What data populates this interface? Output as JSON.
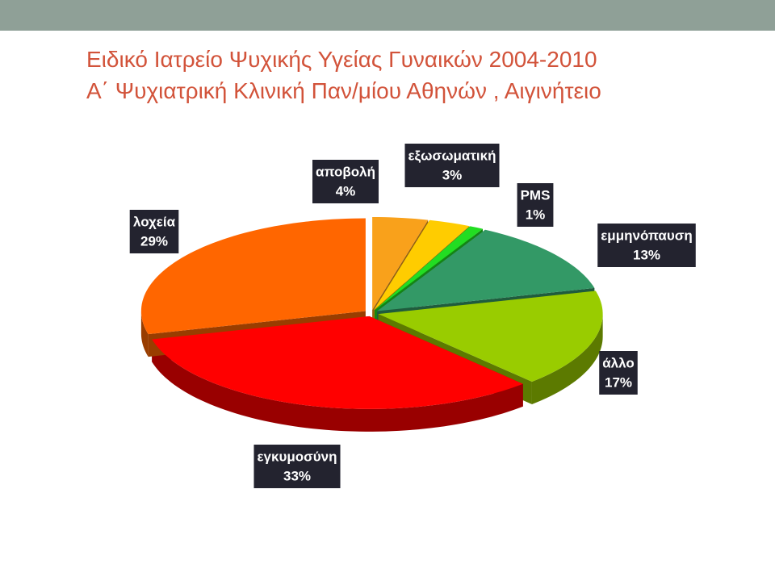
{
  "chart_data": {
    "type": "pie",
    "title": "Ειδικό Ιατρείο Ψυχικής Υγείας Γυναικών 2004-2010",
    "subtitle": "Α΄ Ψυχιατρική Κλινική Παν/μίου Αθηνών , Αιγινήτειο",
    "categories": [
      "αποβολή",
      "εξωσωματική",
      "PMS",
      "εμμηνόπαυση",
      "άλλο",
      "εγκυμοσύνη",
      "λοχεία"
    ],
    "values": [
      4,
      3,
      1,
      13,
      17,
      33,
      29
    ],
    "value_labels": [
      "4%",
      "3%",
      "1%",
      "13%",
      "17%",
      "33%",
      "29%"
    ],
    "colors": [
      "#f9a11b",
      "#ffcc00",
      "#22dd22",
      "#339966",
      "#99cc00",
      "#ff0000",
      "#ff6600"
    ]
  }
}
